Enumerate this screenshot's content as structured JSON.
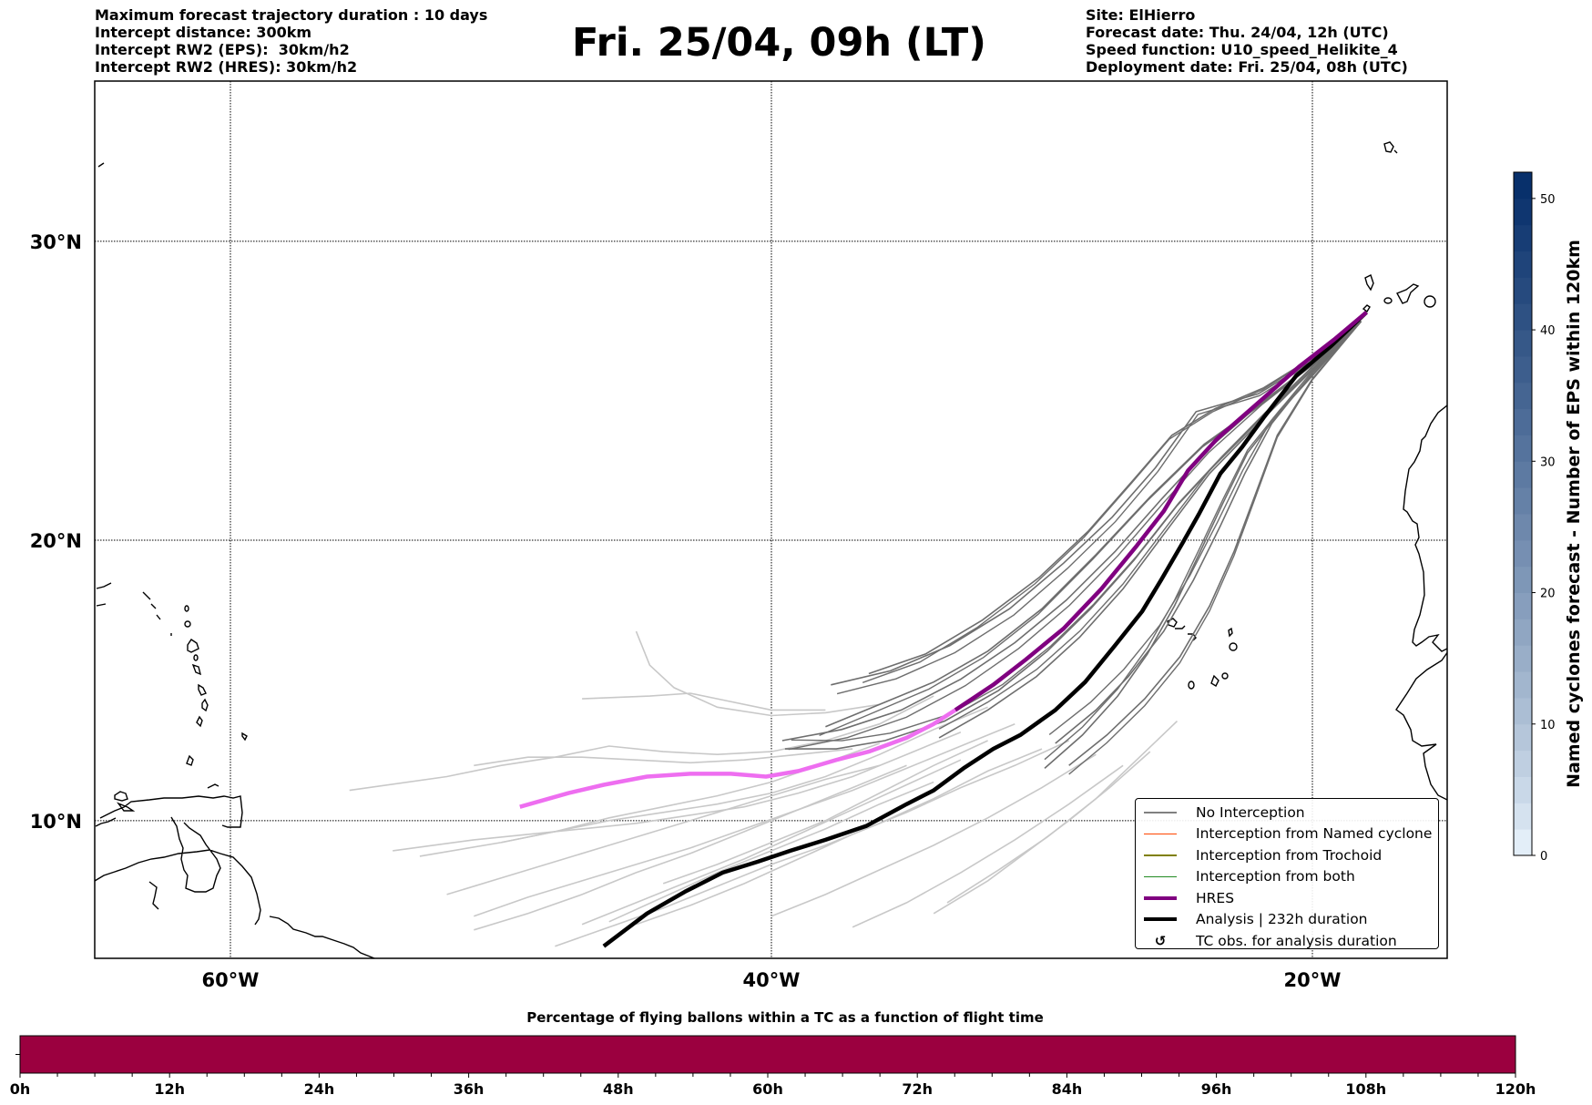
{
  "header": {
    "info_left": [
      "Maximum forecast trajectory duration : 10 days",
      "Intercept distance: 300km",
      "Intercept RW2 (EPS):  30km/h2",
      "Intercept RW2 (HRES): 30km/h2"
    ],
    "title": "Fri. 25/04, 09h (LT)",
    "info_right": [
      "Site: ElHierro",
      "Forecast date: Thu. 24/04, 12h (UTC)",
      "Speed function: U10_speed_Helikite_4",
      "Deployment date: Fri. 25/04, 08h (UTC)"
    ]
  },
  "map": {
    "lon_range": [
      -64.9,
      -15.0
    ],
    "lat_range": [
      5.0,
      35.0
    ],
    "lat_ticks": [
      {
        "value": 30,
        "label": "30°N"
      },
      {
        "value": 20,
        "label": "20°N"
      },
      {
        "value": 10,
        "label": "10°N"
      }
    ],
    "lon_ticks": [
      {
        "value": -60,
        "label": "60°W"
      },
      {
        "value": -40,
        "label": "40°W"
      },
      {
        "value": -20,
        "label": "20°W"
      }
    ],
    "site": {
      "name": "ElHierro",
      "lon": -18.0,
      "lat": 27.7
    },
    "colors": {
      "no_interception_dark": "#6e6e6e",
      "no_interception_light": "#c8c8c8",
      "hres_dark": "#800080",
      "hres_light": "#ee6ef0",
      "analysis": "#000000"
    },
    "hres_track": [
      [
        -18.0,
        27.7
      ],
      [
        -19.2,
        26.8
      ],
      [
        -20.5,
        25.9
      ],
      [
        -22,
        24.7
      ],
      [
        -23.5,
        23.5
      ],
      [
        -24.6,
        22.4
      ],
      [
        -25.5,
        21.0
      ],
      [
        -26.5,
        19.8
      ],
      [
        -27.8,
        18.3
      ],
      [
        -29.2,
        16.9
      ],
      [
        -30.6,
        15.8
      ],
      [
        -31.8,
        14.9
      ],
      [
        -33.2,
        14.0
      ],
      [
        -34.0,
        13.5
      ],
      [
        -35.0,
        13.0
      ],
      [
        -36.4,
        12.5
      ],
      [
        -37.6,
        12.2
      ],
      [
        -39.0,
        11.8
      ],
      [
        -40.2,
        11.6
      ],
      [
        -41.5,
        11.7
      ],
      [
        -43.0,
        11.7
      ],
      [
        -44.6,
        11.6
      ],
      [
        -46.2,
        11.3
      ],
      [
        -47.5,
        11.0
      ],
      [
        -49.3,
        10.5
      ]
    ],
    "hres_split_index": 12,
    "analysis_track": [
      [
        -18.0,
        27.7
      ],
      [
        -19.3,
        26.6
      ],
      [
        -20.6,
        25.6
      ],
      [
        -21.8,
        24.2
      ],
      [
        -22.6,
        23.2
      ],
      [
        -23.4,
        22.3
      ],
      [
        -24.2,
        20.9
      ],
      [
        -24.8,
        19.9
      ],
      [
        -25.6,
        18.6
      ],
      [
        -26.3,
        17.5
      ],
      [
        -27.3,
        16.3
      ],
      [
        -28.4,
        15.0
      ],
      [
        -29.5,
        14.0
      ],
      [
        -30.8,
        13.1
      ],
      [
        -31.8,
        12.6
      ],
      [
        -32.9,
        11.9
      ],
      [
        -34.0,
        11.1
      ],
      [
        -35.0,
        10.6
      ],
      [
        -36.5,
        9.8
      ],
      [
        -38.0,
        9.3
      ],
      [
        -39.3,
        8.9
      ],
      [
        -40.5,
        8.5
      ],
      [
        -41.8,
        8.1
      ],
      [
        -43.2,
        7.4
      ],
      [
        -44.6,
        6.6
      ],
      [
        -46.2,
        5.4
      ]
    ],
    "ensemble_dark_tracks": [
      [
        [
          -18.2,
          27.4
        ],
        [
          -20,
          26
        ],
        [
          -22,
          24.6
        ],
        [
          -24,
          23.3
        ],
        [
          -26,
          21.5
        ],
        [
          -28,
          19.5
        ],
        [
          -30,
          17.6
        ],
        [
          -32,
          16.1
        ],
        [
          -34,
          15.0
        ],
        [
          -36,
          14.2
        ],
        [
          -38,
          13.4
        ]
      ],
      [
        [
          -18.2,
          27.4
        ],
        [
          -20,
          25.8
        ],
        [
          -22,
          24.0
        ],
        [
          -23.8,
          22.3
        ],
        [
          -25.5,
          20.2
        ],
        [
          -27,
          18.3
        ],
        [
          -28.6,
          16.6
        ],
        [
          -30.2,
          15.2
        ],
        [
          -32,
          14.0
        ],
        [
          -33.8,
          13.0
        ]
      ],
      [
        [
          -18.2,
          27.4
        ],
        [
          -20,
          26.1
        ],
        [
          -22,
          25.0
        ],
        [
          -24.3,
          24.4
        ],
        [
          -25.8,
          22.5
        ],
        [
          -27.4,
          20.8
        ],
        [
          -29.2,
          19.2
        ],
        [
          -31.2,
          17.6
        ],
        [
          -33.4,
          16.3
        ],
        [
          -35.6,
          15.4
        ],
        [
          -37.8,
          14.9
        ]
      ],
      [
        [
          -18.2,
          27.4
        ],
        [
          -20,
          25.7
        ],
        [
          -21.5,
          24.0
        ],
        [
          -22.5,
          22.3
        ],
        [
          -23.4,
          20.5
        ],
        [
          -24.4,
          18.6
        ],
        [
          -25.5,
          16.8
        ],
        [
          -26.8,
          15.2
        ],
        [
          -28,
          14.0
        ],
        [
          -29.5,
          12.8
        ]
      ],
      [
        [
          -18.2,
          27.4
        ],
        [
          -20,
          25.5
        ],
        [
          -21.3,
          23.6
        ],
        [
          -22.1,
          21.6
        ],
        [
          -22.9,
          19.6
        ],
        [
          -23.8,
          17.7
        ],
        [
          -24.9,
          15.9
        ],
        [
          -26.2,
          14.4
        ],
        [
          -27.6,
          13.1
        ],
        [
          -29,
          12.0
        ]
      ],
      [
        [
          -18.2,
          27.4
        ],
        [
          -20,
          25.9
        ],
        [
          -21.8,
          24.3
        ],
        [
          -23.4,
          22.8
        ],
        [
          -25.0,
          21.2
        ],
        [
          -26.6,
          19.3
        ],
        [
          -28.2,
          17.6
        ],
        [
          -29.8,
          16.1
        ],
        [
          -31.6,
          14.7
        ],
        [
          -33.6,
          13.6
        ],
        [
          -35.8,
          12.9
        ],
        [
          -37.6,
          12.6
        ],
        [
          -39.5,
          12.6
        ]
      ],
      [
        [
          -18.2,
          27.4
        ],
        [
          -20,
          26.2
        ],
        [
          -21.8,
          25.2
        ],
        [
          -23.6,
          24.5
        ],
        [
          -25.2,
          23.6
        ],
        [
          -26.6,
          22.1
        ],
        [
          -28.3,
          20.3
        ],
        [
          -30.1,
          18.7
        ],
        [
          -32.2,
          17.2
        ],
        [
          -34.3,
          16.0
        ],
        [
          -36.4,
          15.3
        ]
      ],
      [
        [
          -18.2,
          27.4
        ],
        [
          -20,
          25.6
        ],
        [
          -21.2,
          24.4
        ],
        [
          -22.4,
          23.0
        ],
        [
          -23.3,
          21.3
        ],
        [
          -24.2,
          19.5
        ],
        [
          -25.1,
          17.7
        ],
        [
          -26.1,
          16.0
        ],
        [
          -27.2,
          14.5
        ],
        [
          -28.5,
          13.1
        ],
        [
          -29.9,
          11.9
        ]
      ],
      [
        [
          -18.2,
          27.4
        ],
        [
          -20,
          26.0
        ],
        [
          -21.9,
          24.7
        ],
        [
          -23.9,
          23.1
        ],
        [
          -25.6,
          21.4
        ],
        [
          -27.3,
          19.6
        ],
        [
          -29.1,
          17.9
        ],
        [
          -31.0,
          16.4
        ],
        [
          -33.0,
          15.1
        ],
        [
          -35.2,
          14.0
        ],
        [
          -37.4,
          13.3
        ],
        [
          -39.6,
          12.9
        ]
      ]
    ],
    "ensemble_light_tracks": [
      [
        [
          -34,
          14.5
        ],
        [
          -36,
          13.5
        ],
        [
          -38,
          12.9
        ],
        [
          -40,
          12.5
        ],
        [
          -42,
          12.4
        ],
        [
          -44,
          12.5
        ],
        [
          -46,
          12.7
        ],
        [
          -48,
          12.3
        ],
        [
          -50,
          12.0
        ],
        [
          -52,
          11.6
        ],
        [
          -55.6,
          11.1
        ]
      ],
      [
        [
          -32,
          14.1
        ],
        [
          -34,
          13.3
        ],
        [
          -36,
          12.4
        ],
        [
          -38,
          11.6
        ],
        [
          -40,
          11.0
        ],
        [
          -42,
          10.6
        ],
        [
          -44,
          10.3
        ],
        [
          -46,
          10.0
        ],
        [
          -48,
          9.6
        ],
        [
          -50,
          9.2
        ],
        [
          -53,
          8.7
        ]
      ],
      [
        [
          -31,
          13.5
        ],
        [
          -33,
          12.7
        ],
        [
          -35,
          11.9
        ],
        [
          -37,
          11.1
        ],
        [
          -39,
          10.4
        ],
        [
          -41,
          9.7
        ],
        [
          -43,
          9.0
        ],
        [
          -45,
          8.4
        ],
        [
          -47,
          7.8
        ],
        [
          -49,
          7.2
        ],
        [
          -51,
          6.5
        ]
      ],
      [
        [
          -30,
          12.6
        ],
        [
          -32,
          11.8
        ],
        [
          -34,
          10.8
        ],
        [
          -36,
          9.9
        ],
        [
          -38,
          9.1
        ],
        [
          -40,
          8.4
        ],
        [
          -42,
          7.6
        ],
        [
          -44,
          6.8
        ],
        [
          -46,
          6.1
        ],
        [
          -48,
          5.4
        ]
      ],
      [
        [
          -29,
          12.9
        ],
        [
          -31,
          12.0
        ],
        [
          -33,
          11.2
        ],
        [
          -35,
          10.3
        ],
        [
          -37,
          9.5
        ],
        [
          -39,
          8.6
        ],
        [
          -41,
          7.7
        ],
        [
          -43,
          6.9
        ],
        [
          -45,
          6.2
        ]
      ],
      [
        [
          -28,
          12.4
        ],
        [
          -30,
          11.2
        ],
        [
          -32,
          10.1
        ],
        [
          -34,
          9.1
        ],
        [
          -36,
          8.2
        ],
        [
          -38,
          7.3
        ],
        [
          -40,
          6.5
        ]
      ],
      [
        [
          -27,
          12.0
        ],
        [
          -29,
          10.6
        ],
        [
          -31,
          9.3
        ],
        [
          -33,
          8.1
        ],
        [
          -35,
          7.0
        ],
        [
          -37,
          6.1
        ]
      ],
      [
        [
          -33,
          13.2
        ],
        [
          -35,
          12.4
        ],
        [
          -37,
          11.6
        ],
        [
          -39,
          11.0
        ],
        [
          -41,
          10.5
        ],
        [
          -43,
          10.2
        ],
        [
          -45,
          9.9
        ],
        [
          -47,
          9.7
        ],
        [
          -49,
          9.5
        ],
        [
          -51,
          9.3
        ],
        [
          -54,
          8.9
        ]
      ],
      [
        [
          -36,
          12.8
        ],
        [
          -38,
          12.1
        ],
        [
          -40,
          11.4
        ],
        [
          -42,
          10.9
        ],
        [
          -44,
          10.5
        ],
        [
          -46,
          10.1
        ],
        [
          -48,
          9.6
        ],
        [
          -50,
          9.2
        ]
      ],
      [
        [
          -35,
          12.0
        ],
        [
          -37,
          11.2
        ],
        [
          -39,
          10.4
        ],
        [
          -41,
          9.6
        ],
        [
          -43,
          8.8
        ],
        [
          -45,
          8.1
        ],
        [
          -47,
          7.3
        ],
        [
          -49,
          6.6
        ],
        [
          -51,
          6.0
        ]
      ],
      [
        [
          -34,
          11.4
        ],
        [
          -36,
          10.6
        ],
        [
          -38,
          9.7
        ],
        [
          -40,
          8.9
        ],
        [
          -42,
          8.1
        ],
        [
          -44,
          7.2
        ],
        [
          -46,
          6.3
        ]
      ],
      [
        [
          -38,
          14.0
        ],
        [
          -40,
          14.0
        ],
        [
          -42,
          14.4
        ],
        [
          -43,
          14.6
        ],
        [
          -44.5,
          14.5
        ],
        [
          -47,
          14.4
        ]
      ],
      [
        [
          -45,
          16.8
        ],
        [
          -44.5,
          15.6
        ],
        [
          -43.6,
          14.8
        ],
        [
          -42,
          14.1
        ],
        [
          -40,
          13.8
        ],
        [
          -38,
          13.9
        ],
        [
          -36,
          14.2
        ]
      ],
      [
        [
          -37,
          12.6
        ],
        [
          -39,
          12.4
        ],
        [
          -41,
          12.2
        ],
        [
          -43,
          12.1
        ],
        [
          -45,
          12.2
        ],
        [
          -47,
          12.3
        ],
        [
          -49,
          12.3
        ],
        [
          -51,
          12.0
        ]
      ],
      [
        [
          -36,
          12.0
        ],
        [
          -38,
          11.5
        ],
        [
          -40,
          10.9
        ],
        [
          -42,
          10.3
        ],
        [
          -44,
          9.7
        ],
        [
          -46,
          9.1
        ],
        [
          -48,
          8.5
        ],
        [
          -50,
          7.9
        ],
        [
          -52,
          7.3
        ]
      ],
      [
        [
          -33,
          12.2
        ],
        [
          -35,
          11.3
        ],
        [
          -37,
          10.4
        ],
        [
          -39,
          9.5
        ],
        [
          -41,
          8.6
        ],
        [
          -43,
          7.8
        ],
        [
          -45,
          7.0
        ],
        [
          -47,
          6.2
        ]
      ],
      [
        [
          -26,
          12.5
        ],
        [
          -27.5,
          11.2
        ],
        [
          -29,
          10.0
        ],
        [
          -30.5,
          8.9
        ],
        [
          -32,
          7.8
        ],
        [
          -34,
          6.6
        ]
      ],
      [
        [
          -25,
          13.6
        ],
        [
          -26.5,
          12.2
        ],
        [
          -28,
          10.8
        ],
        [
          -29.8,
          9.4
        ],
        [
          -31.6,
          8.2
        ],
        [
          -33.5,
          7.0
        ]
      ],
      [
        [
          -32,
          12.9
        ],
        [
          -34,
          12.0
        ],
        [
          -36,
          11.0
        ],
        [
          -38,
          10.0
        ],
        [
          -40,
          9.2
        ],
        [
          -42,
          8.4
        ],
        [
          -44,
          7.7
        ]
      ]
    ],
    "legend": [
      {
        "label": "No Interception",
        "symbol": "line",
        "color": "#808080"
      },
      {
        "label": "Interception from Named cyclone",
        "symbol": "line",
        "color": "#ff4500"
      },
      {
        "label": "Interception from Trochoid",
        "symbol": "line",
        "color": "#808000"
      },
      {
        "label": "Interception from both",
        "symbol": "line",
        "color": "#228b22"
      },
      {
        "label": "HRES",
        "symbol": "thick-line",
        "color": "#800080"
      },
      {
        "label": "Analysis | 232h duration",
        "symbol": "thick-line",
        "color": "#000000"
      },
      {
        "label": "TC obs. for analysis duration",
        "symbol": "cyclone-icon",
        "glyph": "↺",
        "color": "#000000"
      }
    ]
  },
  "colorbar": {
    "title": "Named cyclones forecast - Number of EPS within 120km",
    "min": 0,
    "max": 52,
    "ticks": [
      0,
      10,
      20,
      30,
      40,
      50
    ],
    "color_low": "#e3eef8",
    "color_high": "#08306b"
  },
  "flight_bar": {
    "title": "Percentage of flying ballons within a TC as a function of flight time",
    "range_hours": [
      0,
      120
    ],
    "fill_color": "#9b003f",
    "fill_percent": 100,
    "tick_labels": [
      "0h",
      "12h",
      "24h",
      "36h",
      "48h",
      "60h",
      "72h",
      "84h",
      "96h",
      "108h",
      "120h"
    ]
  }
}
